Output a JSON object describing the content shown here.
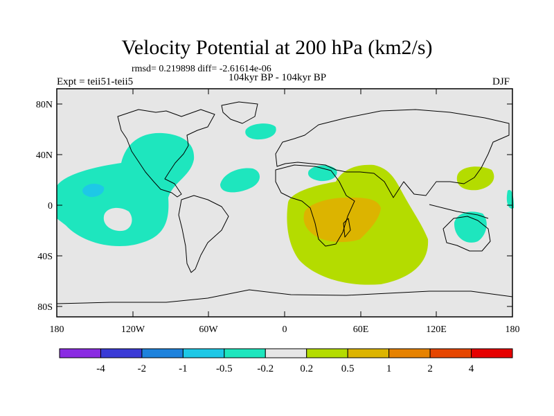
{
  "title": "Velocity Potential at 200 hPa (km2/s)",
  "stats": "rmsd= 0.219898 diff= -2.61614e-06",
  "expt": "Expt = teii51-teii5",
  "period": "104kyr BP - 104kyr BP",
  "season": "DJF",
  "lat_ticks": [
    "80N",
    "40N",
    "0",
    "40S",
    "80S"
  ],
  "lon_ticks": [
    "180",
    "120W",
    "60W",
    "0",
    "60E",
    "120E",
    "180"
  ],
  "colorbar": {
    "colors": [
      "#8a2be2",
      "#3a3ad6",
      "#1e82dc",
      "#1ec8e6",
      "#1ee6be",
      "#e6e6e6",
      "#b4dc00",
      "#dcb400",
      "#e68200",
      "#e64600",
      "#e60000"
    ],
    "labels": [
      "-4",
      "-2",
      "-1",
      "-0.5",
      "-0.2",
      "0.2",
      "0.5",
      "1",
      "2",
      "4"
    ]
  },
  "colors": {
    "ocean_bg": "#e6e6e6",
    "neg_weak": "#1ee6be",
    "neg_mid": "#1ec8e6",
    "pos_weak": "#b4dc00",
    "pos_mid": "#dcb400"
  }
}
